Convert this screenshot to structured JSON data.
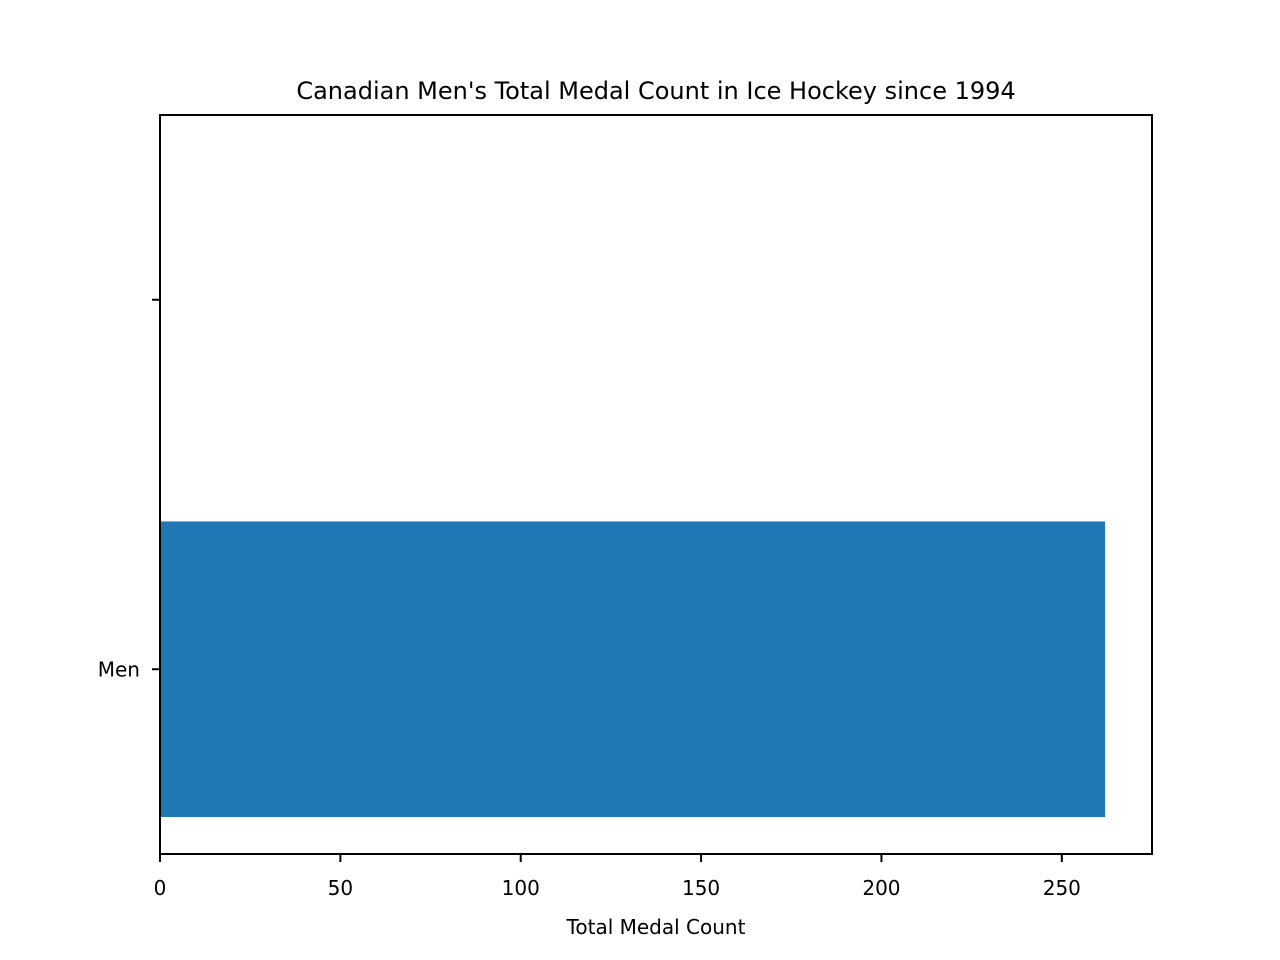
{
  "chart_data": {
    "type": "bar",
    "orientation": "horizontal",
    "title": "Canadian Men's Total Medal Count in Ice Hockey since 1994",
    "xlabel": "Total Medal Count",
    "ylabel": "",
    "categories": [
      "Men",
      ""
    ],
    "values": [
      262,
      null
    ],
    "xlim": [
      0,
      275
    ],
    "xticks": [
      0,
      50,
      100,
      150,
      200,
      250
    ],
    "grid": false,
    "legend": "none",
    "bar_color": "#1f77b4"
  }
}
